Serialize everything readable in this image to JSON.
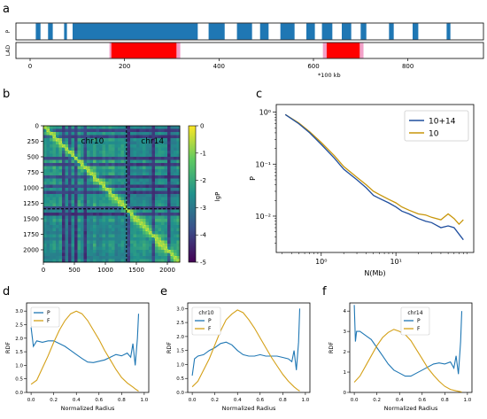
{
  "panel_labels": [
    "a",
    "b",
    "c",
    "d",
    "e",
    "f"
  ],
  "colors": {
    "p_bar": "#1f77b4",
    "lad_bar": "#ff0000",
    "lad_edge": "#f2a0c8",
    "series_P": "#1f77b4",
    "series_F": "#d4a017",
    "line_1014": "#1f4e9e",
    "line_10": "#c8960a",
    "diag": "#9bdd4a"
  },
  "chart_data": [
    {
      "type": "track",
      "panel": "a",
      "xlim": [
        -30,
        960
      ],
      "xticks": [
        0,
        200,
        400,
        600,
        800
      ],
      "xlabel": "*100 kb",
      "tracks": [
        {
          "name": "P",
          "segments": [
            [
              12,
              22
            ],
            [
              38,
              48
            ],
            [
              72,
              78
            ],
            [
              90,
              355
            ],
            [
              378,
              412
            ],
            [
              438,
              470
            ],
            [
              487,
              505
            ],
            [
              530,
              560
            ],
            [
              585,
              603
            ],
            [
              618,
              640
            ],
            [
              660,
              680
            ],
            [
              700,
              712
            ],
            [
              760,
              770
            ],
            [
              810,
              822
            ],
            [
              882,
              890
            ]
          ]
        },
        {
          "name": "LAD",
          "segments": [
            [
              172,
              310
            ],
            [
              628,
              698
            ]
          ],
          "edges": [
            [
              168,
              172
            ],
            [
              310,
              318
            ],
            [
              620,
              628
            ],
            [
              698,
              706
            ]
          ]
        }
      ]
    },
    {
      "type": "heatmap",
      "panel": "b",
      "x_ticks": [
        0,
        500,
        1000,
        1500,
        2000
      ],
      "y_ticks": [
        0,
        250,
        500,
        750,
        1000,
        1250,
        1500,
        1750,
        2000
      ],
      "xlim": [
        0,
        2200
      ],
      "ylim": [
        2200,
        0
      ],
      "boundary": 1340,
      "region_labels": [
        "chr10",
        "chr14"
      ],
      "colorbar": {
        "label": "lgP",
        "range": [
          -5,
          0
        ],
        "ticks": [
          0,
          -1,
          -2,
          -3,
          -4,
          -5
        ]
      }
    },
    {
      "type": "line",
      "panel": "c",
      "log_x": true,
      "log_y": true,
      "xlim": [
        0.25,
        110
      ],
      "ylim": [
        0.002,
        1.4
      ],
      "xlabel": "N(Mb)",
      "ylabel": "P",
      "x_tick_labels": [
        "10⁰",
        "10¹"
      ],
      "y_tick_labels": [
        "10⁰",
        "10⁻¹",
        "10⁻²"
      ],
      "legend": "top-right",
      "series": [
        {
          "name": "10+14",
          "x": [
            0.33,
            0.5,
            0.7,
            1.0,
            1.5,
            2.0,
            3.0,
            4.0,
            5.0,
            6.0,
            8.0,
            10.0,
            12.0,
            15.0,
            20.0,
            25.0,
            30.0,
            40.0,
            50.0,
            60.0,
            70.0,
            80.0
          ],
          "y": [
            0.9,
            0.6,
            0.4,
            0.24,
            0.13,
            0.08,
            0.05,
            0.035,
            0.025,
            0.022,
            0.018,
            0.015,
            0.0125,
            0.011,
            0.009,
            0.008,
            0.0075,
            0.006,
            0.0065,
            0.006,
            0.0045,
            0.0035
          ]
        },
        {
          "name": "10",
          "x": [
            0.33,
            0.5,
            0.7,
            1.0,
            1.5,
            2.0,
            3.0,
            4.0,
            5.0,
            6.0,
            8.0,
            10.0,
            12.0,
            15.0,
            20.0,
            25.0,
            30.0,
            40.0,
            50.0,
            60.0,
            70.0,
            80.0
          ],
          "y": [
            0.9,
            0.62,
            0.42,
            0.26,
            0.145,
            0.09,
            0.056,
            0.04,
            0.03,
            0.026,
            0.021,
            0.018,
            0.015,
            0.013,
            0.011,
            0.0105,
            0.0095,
            0.0085,
            0.011,
            0.009,
            0.007,
            0.0085
          ]
        }
      ]
    },
    {
      "type": "line",
      "panel": "d",
      "xlabel": "Normalized Radius",
      "ylabel": "RDF",
      "xlim": [
        -0.04,
        1.04
      ],
      "ylim": [
        0,
        3.3
      ],
      "x_ticks": [
        0.0,
        0.2,
        0.4,
        0.6,
        0.8,
        1.0
      ],
      "x_tick_labels": [
        "0.0",
        "0.2",
        "0.4",
        "0.6",
        "0.8",
        "1.0"
      ],
      "y_ticks": [
        0.0,
        0.5,
        1.0,
        1.5,
        2.0,
        2.5,
        3.0
      ],
      "y_tick_labels": [
        "0.0",
        "0.5",
        "1.0",
        "1.5",
        "2.0",
        "2.5",
        "3.0"
      ],
      "legend": "top-left",
      "series": [
        {
          "name": "P",
          "x": [
            0.0,
            0.02,
            0.05,
            0.1,
            0.15,
            0.2,
            0.25,
            0.3,
            0.35,
            0.4,
            0.45,
            0.5,
            0.55,
            0.6,
            0.65,
            0.7,
            0.75,
            0.8,
            0.85,
            0.88,
            0.9,
            0.92,
            0.94,
            0.95
          ],
          "y": [
            2.4,
            1.7,
            1.9,
            1.85,
            1.9,
            1.9,
            1.8,
            1.7,
            1.55,
            1.4,
            1.25,
            1.12,
            1.1,
            1.15,
            1.2,
            1.3,
            1.4,
            1.35,
            1.45,
            1.3,
            1.8,
            1.0,
            2.0,
            2.9
          ]
        },
        {
          "name": "F",
          "x": [
            0.0,
            0.05,
            0.1,
            0.15,
            0.2,
            0.25,
            0.3,
            0.35,
            0.4,
            0.45,
            0.5,
            0.55,
            0.6,
            0.65,
            0.7,
            0.75,
            0.8,
            0.85,
            0.9,
            0.93,
            0.95
          ],
          "y": [
            0.3,
            0.45,
            0.9,
            1.35,
            1.85,
            2.3,
            2.65,
            2.9,
            3.0,
            2.9,
            2.65,
            2.3,
            1.95,
            1.55,
            1.2,
            0.85,
            0.55,
            0.35,
            0.2,
            0.1,
            0.05
          ]
        }
      ]
    },
    {
      "type": "line",
      "panel": "e",
      "xlabel": "Normalized Radius",
      "ylabel": "RDF",
      "title_label": "chr10",
      "xlim": [
        -0.04,
        1.04
      ],
      "ylim": [
        0,
        3.2
      ],
      "x_ticks": [
        0.0,
        0.2,
        0.4,
        0.6,
        0.8,
        1.0
      ],
      "x_tick_labels": [
        "0.0",
        "0.2",
        "0.4",
        "0.6",
        "0.8",
        "1.0"
      ],
      "y_ticks": [
        0.0,
        0.5,
        1.0,
        1.5,
        2.0,
        2.5,
        3.0
      ],
      "y_tick_labels": [
        "0.0",
        "0.5",
        "1.0",
        "1.5",
        "2.0",
        "2.5",
        "3.0"
      ],
      "legend": "top-left",
      "series": [
        {
          "name": "P",
          "x": [
            0.0,
            0.02,
            0.05,
            0.1,
            0.15,
            0.2,
            0.25,
            0.3,
            0.35,
            0.4,
            0.45,
            0.5,
            0.55,
            0.6,
            0.65,
            0.7,
            0.75,
            0.8,
            0.85,
            0.88,
            0.9,
            0.92,
            0.94,
            0.95
          ],
          "y": [
            0.6,
            1.2,
            1.3,
            1.35,
            1.5,
            1.6,
            1.75,
            1.8,
            1.7,
            1.5,
            1.35,
            1.3,
            1.3,
            1.35,
            1.3,
            1.3,
            1.3,
            1.25,
            1.2,
            1.1,
            1.5,
            0.8,
            1.8,
            3.0
          ]
        },
        {
          "name": "F",
          "x": [
            0.0,
            0.05,
            0.1,
            0.15,
            0.2,
            0.25,
            0.3,
            0.35,
            0.4,
            0.45,
            0.5,
            0.55,
            0.6,
            0.65,
            0.7,
            0.75,
            0.8,
            0.85,
            0.9,
            0.93,
            0.95
          ],
          "y": [
            0.2,
            0.4,
            0.8,
            1.2,
            1.7,
            2.2,
            2.6,
            2.8,
            2.95,
            2.85,
            2.6,
            2.3,
            1.95,
            1.6,
            1.25,
            0.95,
            0.65,
            0.4,
            0.2,
            0.1,
            0.05
          ]
        }
      ]
    },
    {
      "type": "line",
      "panel": "f",
      "xlabel": "Normalized Radius",
      "ylabel": "RDF",
      "title_label": "chr14",
      "xlim": [
        -0.04,
        1.04
      ],
      "ylim": [
        0,
        4.4
      ],
      "x_ticks": [
        0.0,
        0.2,
        0.4,
        0.6,
        0.8,
        1.0
      ],
      "x_tick_labels": [
        "0.0",
        "0.2",
        "0.4",
        "0.6",
        "0.8",
        "1.0"
      ],
      "y_ticks": [
        0,
        1,
        2,
        3,
        4
      ],
      "y_tick_labels": [
        "0",
        "1",
        "2",
        "3",
        "4"
      ],
      "legend": "top-center",
      "series": [
        {
          "name": "P",
          "x": [
            0.0,
            0.01,
            0.02,
            0.05,
            0.1,
            0.15,
            0.2,
            0.25,
            0.3,
            0.35,
            0.4,
            0.45,
            0.5,
            0.55,
            0.6,
            0.65,
            0.7,
            0.75,
            0.8,
            0.85,
            0.88,
            0.9,
            0.92,
            0.94,
            0.95
          ],
          "y": [
            4.3,
            2.5,
            3.0,
            3.0,
            2.8,
            2.6,
            2.2,
            1.8,
            1.4,
            1.1,
            0.95,
            0.8,
            0.8,
            0.95,
            1.1,
            1.25,
            1.4,
            1.45,
            1.4,
            1.5,
            1.2,
            1.8,
            0.9,
            2.5,
            4.0
          ]
        },
        {
          "name": "F",
          "x": [
            0.0,
            0.05,
            0.1,
            0.15,
            0.2,
            0.25,
            0.3,
            0.35,
            0.4,
            0.45,
            0.5,
            0.55,
            0.6,
            0.65,
            0.7,
            0.75,
            0.8,
            0.85,
            0.9,
            0.93,
            0.95
          ],
          "y": [
            0.5,
            0.8,
            1.3,
            1.8,
            2.3,
            2.7,
            2.95,
            3.1,
            3.0,
            2.85,
            2.55,
            2.1,
            1.65,
            1.2,
            0.85,
            0.55,
            0.3,
            0.15,
            0.08,
            0.05,
            0.02
          ]
        }
      ]
    }
  ]
}
